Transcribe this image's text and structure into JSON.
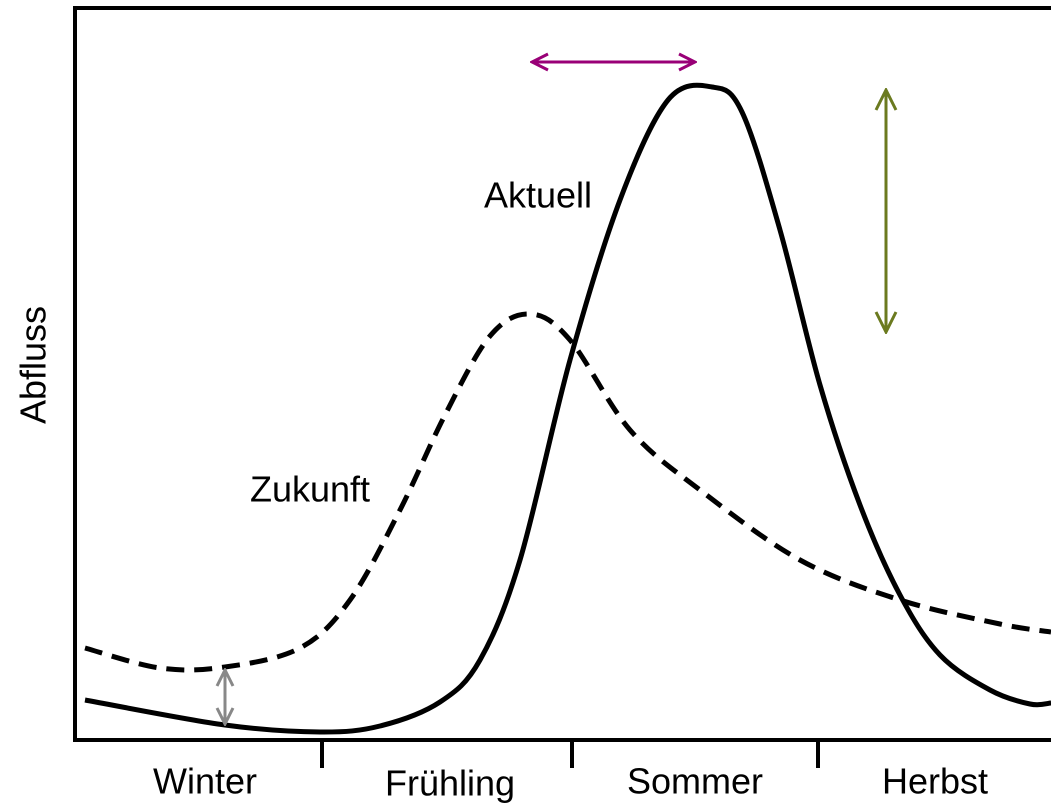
{
  "axis_label": "Abfluss",
  "seasons": [
    "Winter",
    "Frühling",
    "Sommer",
    "Herbst"
  ],
  "curves": [
    {
      "label": "Aktuell"
    },
    {
      "label": "Zukunft"
    }
  ]
}
